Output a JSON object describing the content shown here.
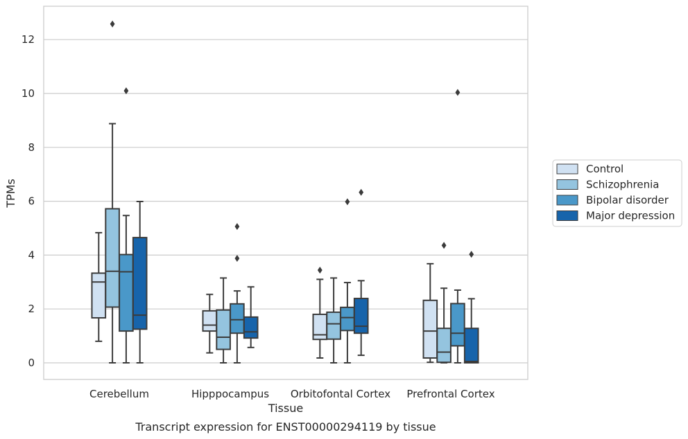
{
  "chart_data": {
    "type": "box",
    "caption": "Transcript expression for ENST00000294119 by tissue",
    "xlabel": "Tissue",
    "ylabel": "TPMs",
    "ylim": [
      -0.6,
      13.2
    ],
    "yticks": [
      0,
      2,
      4,
      6,
      8,
      10,
      12
    ],
    "grid": "horizontal",
    "legend_position": "right",
    "categories": [
      "Cerebellum",
      "Hipppocampus",
      "Orbitofontal Cortex",
      "Prefrontal Cortex"
    ],
    "series": [
      {
        "name": "Control",
        "color": "#d0e1f2",
        "boxes": [
          {
            "whislo": 0.8,
            "q1": 1.67,
            "median": 3.0,
            "q3": 3.33,
            "whishi": 4.83,
            "fliers": []
          },
          {
            "whislo": 0.37,
            "q1": 1.18,
            "median": 1.4,
            "q3": 1.93,
            "whishi": 2.54,
            "fliers": []
          },
          {
            "whislo": 0.18,
            "q1": 0.87,
            "median": 1.04,
            "q3": 1.8,
            "whishi": 3.1,
            "fliers": [
              3.44
            ]
          },
          {
            "whislo": 0.02,
            "q1": 0.18,
            "median": 1.18,
            "q3": 2.32,
            "whishi": 3.68,
            "fliers": []
          }
        ]
      },
      {
        "name": "Schizophrenia",
        "color": "#94c4df",
        "boxes": [
          {
            "whislo": 0.0,
            "q1": 2.07,
            "median": 3.4,
            "q3": 5.72,
            "whishi": 8.88,
            "fliers": [
              12.58
            ]
          },
          {
            "whislo": 0.0,
            "q1": 0.5,
            "median": 0.95,
            "q3": 1.96,
            "whishi": 3.15,
            "fliers": []
          },
          {
            "whislo": 0.0,
            "q1": 0.88,
            "median": 1.45,
            "q3": 1.88,
            "whishi": 3.15,
            "fliers": []
          },
          {
            "whislo": 0.0,
            "q1": 0.02,
            "median": 0.4,
            "q3": 1.28,
            "whishi": 2.77,
            "fliers": [
              4.36
            ]
          }
        ]
      },
      {
        "name": "Bipolar disorder",
        "color": "#4a98c9",
        "boxes": [
          {
            "whislo": 0.0,
            "q1": 1.18,
            "median": 3.38,
            "q3": 4.02,
            "whishi": 5.47,
            "fliers": [
              10.1
            ]
          },
          {
            "whislo": 0.0,
            "q1": 1.1,
            "median": 1.6,
            "q3": 2.19,
            "whishi": 2.67,
            "fliers": [
              3.88,
              5.06
            ]
          },
          {
            "whislo": 0.0,
            "q1": 1.2,
            "median": 1.68,
            "q3": 2.06,
            "whishi": 2.98,
            "fliers": [
              5.98
            ]
          },
          {
            "whislo": 0.0,
            "q1": 0.63,
            "median": 1.1,
            "q3": 2.2,
            "whishi": 2.7,
            "fliers": [
              10.04
            ]
          }
        ]
      },
      {
        "name": "Major depression",
        "color": "#1764ab",
        "boxes": [
          {
            "whislo": 0.0,
            "q1": 1.25,
            "median": 1.77,
            "q3": 4.65,
            "whishi": 5.99,
            "fliers": []
          },
          {
            "whislo": 0.57,
            "q1": 0.92,
            "median": 1.15,
            "q3": 1.7,
            "whishi": 2.82,
            "fliers": []
          },
          {
            "whislo": 0.28,
            "q1": 1.1,
            "median": 1.36,
            "q3": 2.39,
            "whishi": 3.05,
            "fliers": [
              6.33
            ]
          },
          {
            "whislo": 0.0,
            "q1": 0.0,
            "median": 0.05,
            "q3": 1.28,
            "whishi": 2.38,
            "fliers": [
              4.03
            ]
          }
        ]
      }
    ]
  }
}
